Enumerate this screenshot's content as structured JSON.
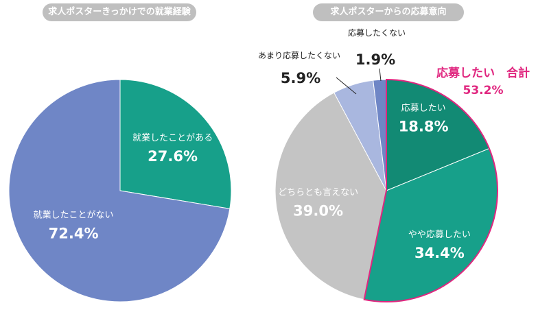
{
  "chart_data": [
    {
      "type": "pie",
      "title": "求人ポスターきっかけでの就業経験",
      "slices": [
        {
          "label": "就業したことがある",
          "value": 27.6,
          "value_label": "27.6%",
          "color": "#17a08a"
        },
        {
          "label": "就業したことがない",
          "value": 72.4,
          "value_label": "72.4%",
          "color": "#6f86c6"
        }
      ]
    },
    {
      "type": "pie",
      "title": "求人ポスターからの応募意向",
      "slices": [
        {
          "label": "応募したい",
          "value": 18.8,
          "value_label": "18.8%",
          "color": "#128a74"
        },
        {
          "label": "やや応募したい",
          "value": 34.4,
          "value_label": "34.4%",
          "color": "#17a08a"
        },
        {
          "label": "どちらとも言えない",
          "value": 39.0,
          "value_label": "39.0%",
          "color": "#c4c4c4"
        },
        {
          "label": "あまり応募したくない",
          "value": 5.9,
          "value_label": "5.9%",
          "color": "#a9b7df"
        },
        {
          "label": "応募したくない",
          "value": 1.9,
          "value_label": "1.9%",
          "color": "#6f86c6"
        }
      ],
      "annotation": {
        "title": "応募したい　合計",
        "value": "53.2%",
        "color": "#e0267f"
      }
    }
  ]
}
